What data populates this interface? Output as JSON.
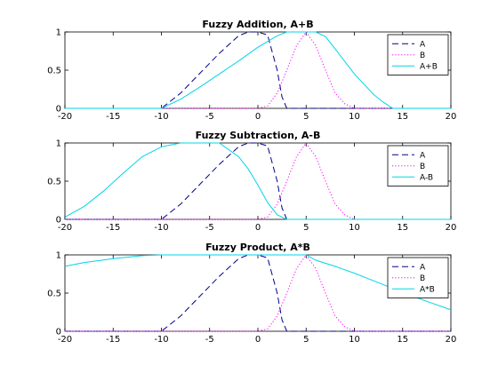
{
  "colors": {
    "A": "#00008b",
    "B": "#ff00ff",
    "result": "#00d4e8"
  },
  "chart_data": [
    {
      "type": "line",
      "title": "Fuzzy Addition, A+B",
      "xlim": [
        -20,
        20
      ],
      "ylim": [
        0,
        1
      ],
      "xticks": [
        "-20",
        "-15",
        "-10",
        "-5",
        "0",
        "5",
        "10",
        "15",
        "20"
      ],
      "yticks": [
        "0",
        "0.5",
        "1"
      ],
      "legend_position": "top-right",
      "series": [
        {
          "name": "A",
          "style": "dashed",
          "color": "#00008b",
          "x": [
            -20,
            -10,
            -8,
            -6,
            -4,
            -2,
            -1,
            0,
            1,
            2,
            2.5,
            3,
            20
          ],
          "y": [
            0,
            0,
            0.2,
            0.46,
            0.72,
            0.95,
            1,
            1,
            0.96,
            0.5,
            0.15,
            0,
            0
          ]
        },
        {
          "name": "B",
          "style": "dotted",
          "color": "#ff00ff",
          "x": [
            -20,
            0,
            1,
            2,
            3,
            4,
            5,
            6,
            7,
            8,
            9,
            10,
            20
          ],
          "y": [
            0,
            0,
            0.03,
            0.2,
            0.5,
            0.82,
            1,
            0.82,
            0.5,
            0.2,
            0.06,
            0,
            0
          ]
        },
        {
          "name": "A+B",
          "style": "solid",
          "color": "#00d4e8",
          "x": [
            -20,
            -10,
            -8,
            -6,
            -4,
            -2,
            0,
            2,
            3,
            4,
            6,
            7,
            8,
            10,
            12,
            13,
            14,
            20
          ],
          "y": [
            0,
            0,
            0.12,
            0.28,
            0.45,
            0.62,
            0.8,
            0.95,
            1,
            1,
            1,
            0.94,
            0.78,
            0.45,
            0.18,
            0.08,
            0,
            0
          ]
        }
      ]
    },
    {
      "type": "line",
      "title": "Fuzzy Subtraction, A-B",
      "xlim": [
        -20,
        20
      ],
      "ylim": [
        0,
        1
      ],
      "xticks": [
        "-20",
        "-15",
        "-10",
        "-5",
        "0",
        "5",
        "10",
        "15",
        "20"
      ],
      "yticks": [
        "0",
        "0.5",
        "1"
      ],
      "legend_position": "top-right",
      "series": [
        {
          "name": "A",
          "style": "dashed",
          "color": "#00008b",
          "x": [
            -20,
            -10,
            -8,
            -6,
            -4,
            -2,
            -1,
            0,
            1,
            2,
            2.5,
            3,
            20
          ],
          "y": [
            0,
            0,
            0.2,
            0.46,
            0.72,
            0.95,
            1,
            1,
            0.96,
            0.5,
            0.15,
            0,
            0
          ]
        },
        {
          "name": "B",
          "style": "dotted",
          "color": "#ff00ff",
          "x": [
            -20,
            0,
            1,
            2,
            3,
            4,
            5,
            6,
            7,
            8,
            9,
            10,
            20
          ],
          "y": [
            0,
            0,
            0.03,
            0.2,
            0.5,
            0.82,
            1,
            0.82,
            0.5,
            0.2,
            0.06,
            0,
            0
          ]
        },
        {
          "name": "A-B",
          "style": "solid",
          "color": "#00d4e8",
          "x": [
            -20,
            -18,
            -16,
            -14,
            -12,
            -10,
            -8,
            -6,
            -4,
            -2,
            -1,
            0,
            1,
            2,
            3,
            20
          ],
          "y": [
            0.03,
            0.17,
            0.37,
            0.6,
            0.82,
            0.95,
            1,
            1,
            1,
            0.82,
            0.66,
            0.45,
            0.22,
            0.06,
            0,
            0
          ]
        }
      ]
    },
    {
      "type": "line",
      "title": "Fuzzy Product, A*B",
      "xlim": [
        -20,
        20
      ],
      "ylim": [
        0,
        1
      ],
      "xticks": [
        "-20",
        "-15",
        "-10",
        "-5",
        "0",
        "5",
        "10",
        "15",
        "20"
      ],
      "yticks": [
        "0",
        "0.5",
        "1"
      ],
      "legend_position": "top-right",
      "series": [
        {
          "name": "A",
          "style": "dashed",
          "color": "#00008b",
          "x": [
            -20,
            -10,
            -8,
            -6,
            -4,
            -2,
            -1,
            0,
            1,
            2,
            2.5,
            3,
            20
          ],
          "y": [
            0,
            0,
            0.2,
            0.46,
            0.72,
            0.95,
            1,
            1,
            0.96,
            0.5,
            0.15,
            0,
            0
          ]
        },
        {
          "name": "B",
          "style": "dotted",
          "color": "#ff00ff",
          "x": [
            -20,
            0,
            1,
            2,
            3,
            4,
            5,
            6,
            7,
            8,
            9,
            10,
            20
          ],
          "y": [
            0,
            0,
            0.03,
            0.2,
            0.5,
            0.82,
            1,
            0.82,
            0.5,
            0.2,
            0.06,
            0,
            0
          ]
        },
        {
          "name": "A*B",
          "style": "solid",
          "color": "#00d4e8",
          "x": [
            -20,
            -18,
            -15,
            -12,
            -10,
            -5,
            0,
            3,
            5,
            6,
            8,
            10,
            12,
            14,
            16,
            18,
            20
          ],
          "y": [
            0.85,
            0.9,
            0.95,
            0.99,
            1,
            1,
            1,
            1,
            1,
            0.93,
            0.85,
            0.76,
            0.66,
            0.56,
            0.46,
            0.37,
            0.28
          ]
        }
      ]
    }
  ]
}
